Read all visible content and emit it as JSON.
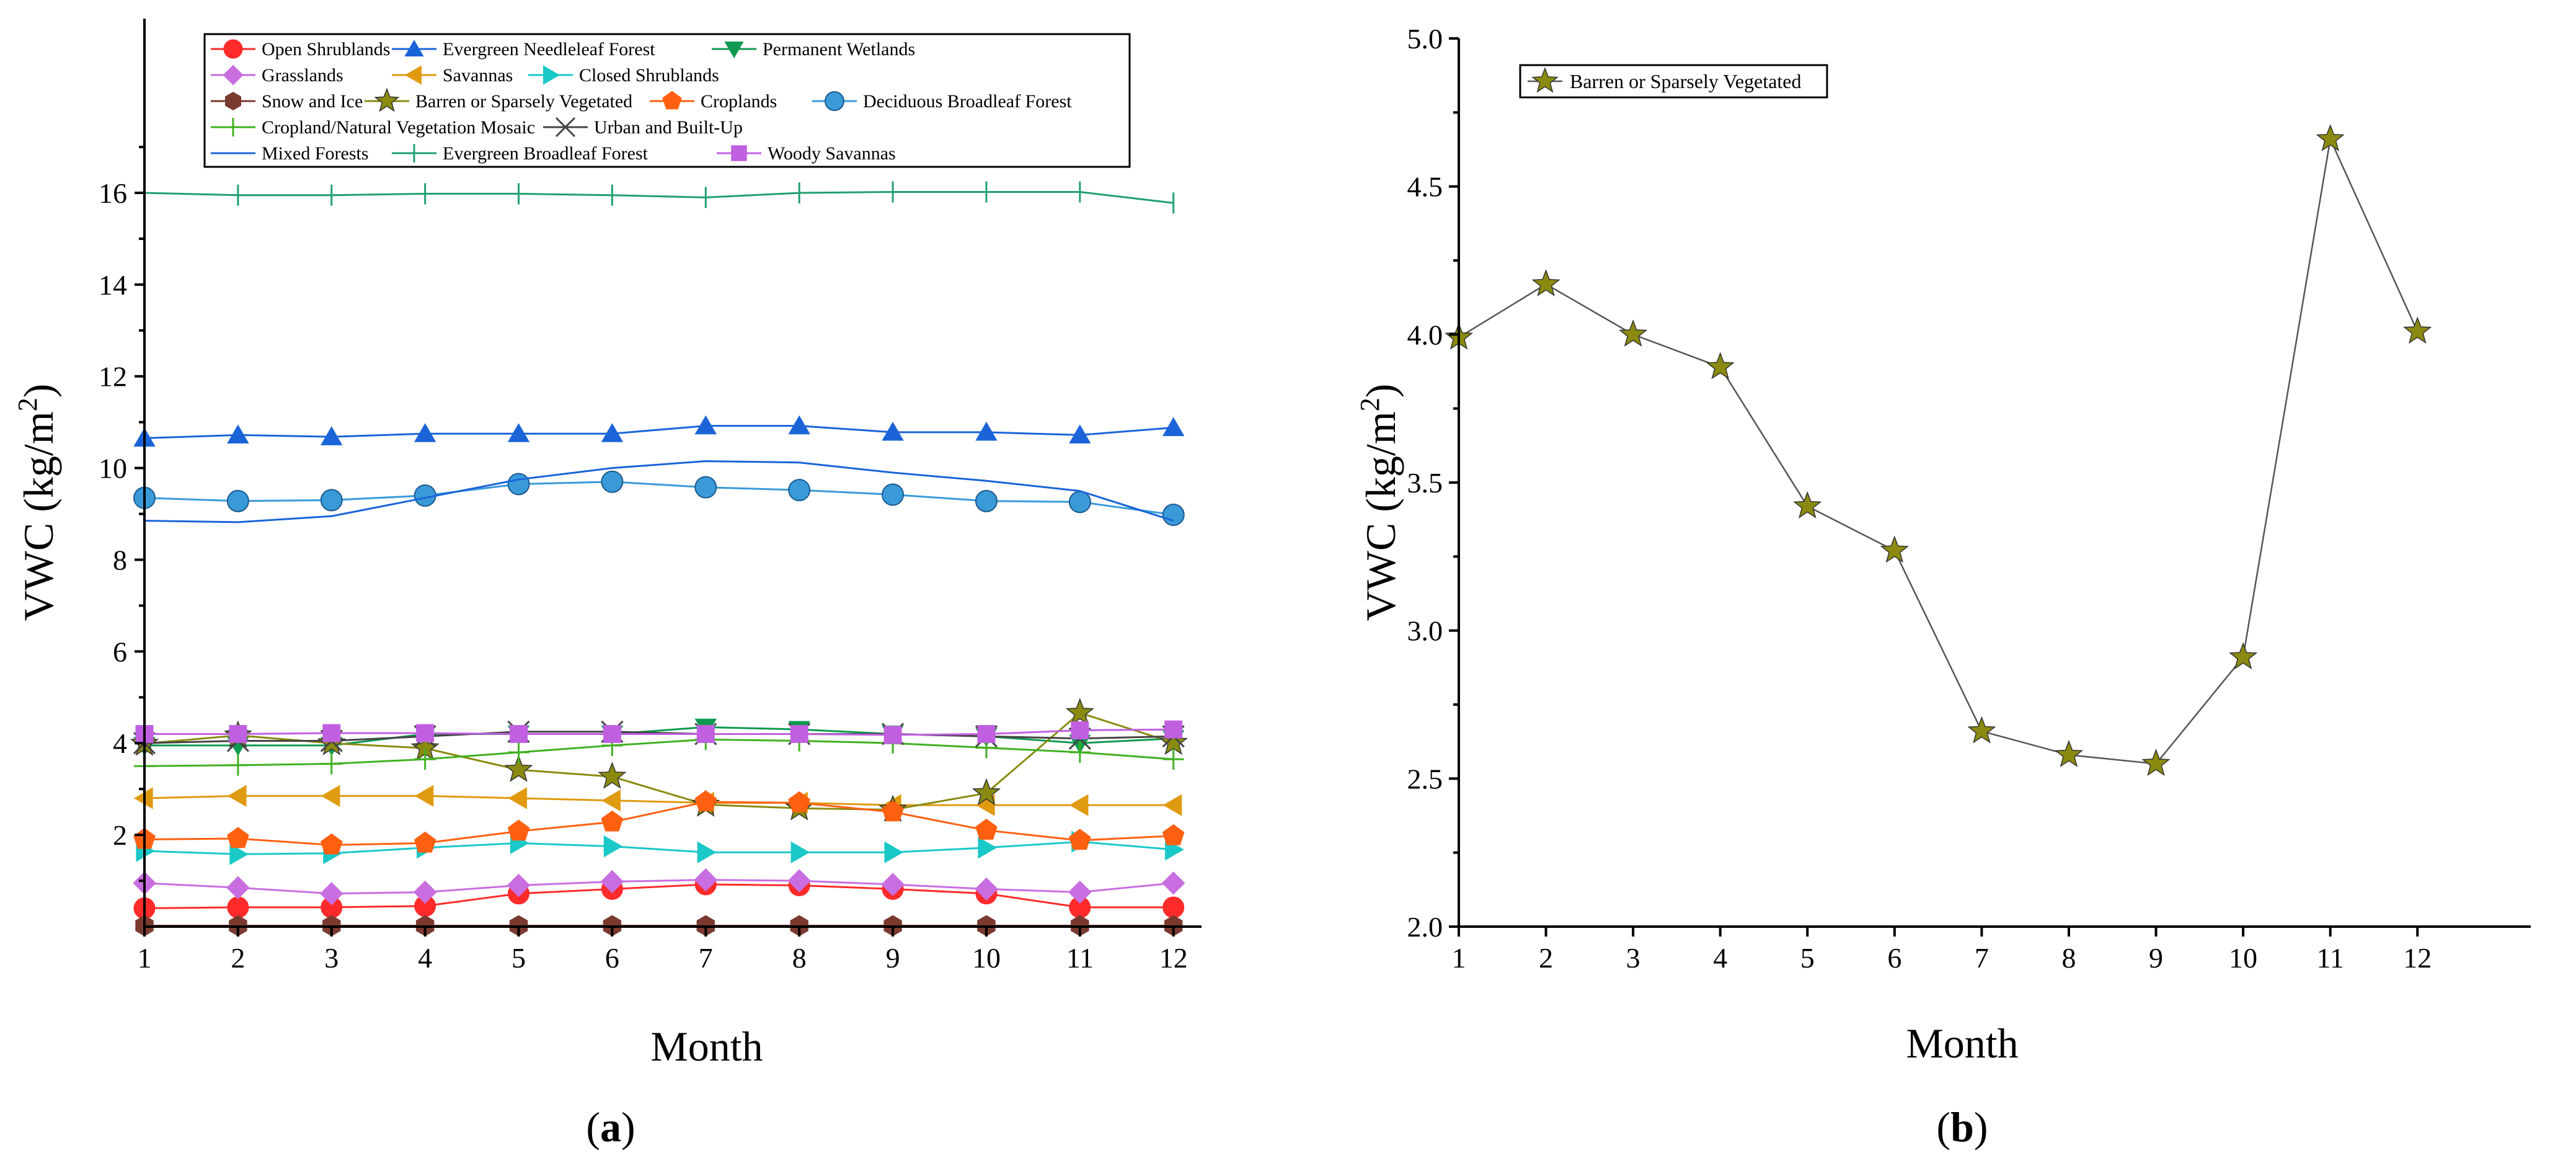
{
  "chart_data": [
    {
      "type": "line",
      "panel_label": "a",
      "xlabel": "Month",
      "ylabel": "VWC (kg/m",
      "ylabel_sup": "2",
      "ylabel_close": ")",
      "xlim": [
        1,
        12.3
      ],
      "ylim": [
        0,
        19.8
      ],
      "x_ticks": [
        1,
        2,
        3,
        4,
        5,
        6,
        7,
        8,
        9,
        10,
        11,
        12
      ],
      "y_ticks": [
        2,
        4,
        6,
        8,
        10,
        12,
        14,
        16
      ],
      "x": [
        1,
        2,
        3,
        4,
        5,
        6,
        7,
        8,
        9,
        10,
        11,
        12
      ],
      "legend_position": "top",
      "series": [
        {
          "name": "Open Shrublands",
          "marker": "circle",
          "color": "#ff2a2a",
          "values": [
            0.4,
            0.42,
            0.42,
            0.45,
            0.72,
            0.82,
            0.92,
            0.9,
            0.82,
            0.72,
            0.42,
            0.42
          ]
        },
        {
          "name": "Evergreen Needleleaf Forest",
          "marker": "triangle-up",
          "color": "#1a64d8",
          "values": [
            10.65,
            10.72,
            10.68,
            10.75,
            10.75,
            10.75,
            10.92,
            10.92,
            10.78,
            10.78,
            10.72,
            10.88
          ]
        },
        {
          "name": "Permanent Wetlands",
          "marker": "triangle-down",
          "color": "#0e9a50",
          "values": [
            3.95,
            3.95,
            3.95,
            4.2,
            4.2,
            4.2,
            4.35,
            4.3,
            4.2,
            4.15,
            4.0,
            4.1
          ]
        },
        {
          "name": "Grasslands",
          "marker": "diamond",
          "color": "#c86ee0",
          "values": [
            0.95,
            0.85,
            0.72,
            0.75,
            0.9,
            0.98,
            1.02,
            1.0,
            0.92,
            0.82,
            0.75,
            0.95
          ]
        },
        {
          "name": "Savannas",
          "marker": "triangle-left",
          "color": "#e09a10",
          "values": [
            2.8,
            2.85,
            2.85,
            2.85,
            2.8,
            2.75,
            2.7,
            2.7,
            2.65,
            2.65,
            2.65,
            2.65
          ]
        },
        {
          "name": "Closed Shrublands",
          "marker": "triangle-right",
          "color": "#1ac8c8",
          "values": [
            1.65,
            1.58,
            1.6,
            1.72,
            1.82,
            1.75,
            1.62,
            1.62,
            1.62,
            1.72,
            1.85,
            1.68
          ]
        },
        {
          "name": "Snow and Ice",
          "marker": "hexagon",
          "color": "#7a3a30",
          "values": [
            0.02,
            0.02,
            0.02,
            0.02,
            0.02,
            0.02,
            0.02,
            0.02,
            0.02,
            0.02,
            0.02,
            0.02
          ]
        },
        {
          "name": "Barren or Sparsely Vegetated",
          "marker": "star",
          "color": "#8a8a10",
          "values": [
            3.99,
            4.17,
            4.0,
            3.89,
            3.42,
            3.27,
            2.66,
            2.58,
            2.55,
            2.91,
            4.66,
            4.01
          ]
        },
        {
          "name": "Croplands",
          "marker": "pentagon",
          "color": "#ff6010",
          "values": [
            1.9,
            1.92,
            1.78,
            1.82,
            2.08,
            2.28,
            2.72,
            2.7,
            2.5,
            2.1,
            1.88,
            1.98
          ]
        },
        {
          "name": "Deciduous Broadleaf Forest",
          "marker": "sphere",
          "color": "#3a9ad8",
          "values": [
            9.35,
            9.28,
            9.3,
            9.4,
            9.65,
            9.7,
            9.58,
            9.52,
            9.42,
            9.28,
            9.26,
            8.98
          ]
        },
        {
          "name": "Cropland/Natural Vegetation Mosaic",
          "marker": "plus",
          "color": "#40b020",
          "values": [
            3.5,
            3.52,
            3.55,
            3.65,
            3.8,
            3.95,
            4.08,
            4.05,
            4.0,
            3.9,
            3.8,
            3.65
          ]
        },
        {
          "name": "Urban and Built-Up",
          "marker": "cross",
          "color": "#444444",
          "values": [
            4.0,
            4.05,
            4.05,
            4.15,
            4.25,
            4.25,
            4.2,
            4.2,
            4.2,
            4.15,
            4.1,
            4.15
          ]
        },
        {
          "name": "Mixed Forests",
          "marker": "none",
          "color": "#1a64d8",
          "values": [
            8.85,
            8.82,
            8.95,
            9.35,
            9.75,
            10.0,
            10.15,
            10.12,
            9.9,
            9.72,
            9.5,
            8.85
          ]
        },
        {
          "name": "Evergreen Broadleaf Forest",
          "marker": "vline",
          "color": "#20a070",
          "values": [
            16.0,
            15.95,
            15.95,
            15.98,
            15.98,
            15.95,
            15.9,
            16.0,
            16.02,
            16.02,
            16.02,
            15.78
          ]
        },
        {
          "name": "Woody Savannas",
          "marker": "square",
          "color": "#c060e0",
          "values": [
            4.2,
            4.2,
            4.22,
            4.22,
            4.2,
            4.2,
            4.2,
            4.2,
            4.18,
            4.2,
            4.28,
            4.3
          ]
        }
      ]
    },
    {
      "type": "line",
      "panel_label": "b",
      "xlabel": "Month",
      "ylabel": "VWC (kg/m",
      "ylabel_sup": "2",
      "ylabel_close": ")",
      "xlim": [
        1,
        13.3
      ],
      "ylim": [
        2.0,
        5.0
      ],
      "x_ticks": [
        1,
        2,
        3,
        4,
        5,
        6,
        7,
        8,
        9,
        10,
        11,
        12
      ],
      "y_ticks": [
        "2.0",
        "2.5",
        "3.0",
        "3.5",
        "4.0",
        "4.5",
        "5.0"
      ],
      "x": [
        1,
        2,
        3,
        4,
        5,
        6,
        7,
        8,
        9,
        10,
        11,
        12
      ],
      "legend_position": "top-left",
      "series": [
        {
          "name": "Barren or Sparsely Vegetated",
          "marker": "star",
          "color": "#8a8a10",
          "values": [
            3.99,
            4.17,
            4.0,
            3.89,
            3.42,
            3.27,
            2.66,
            2.58,
            2.55,
            2.91,
            4.66,
            4.01
          ]
        }
      ]
    }
  ]
}
